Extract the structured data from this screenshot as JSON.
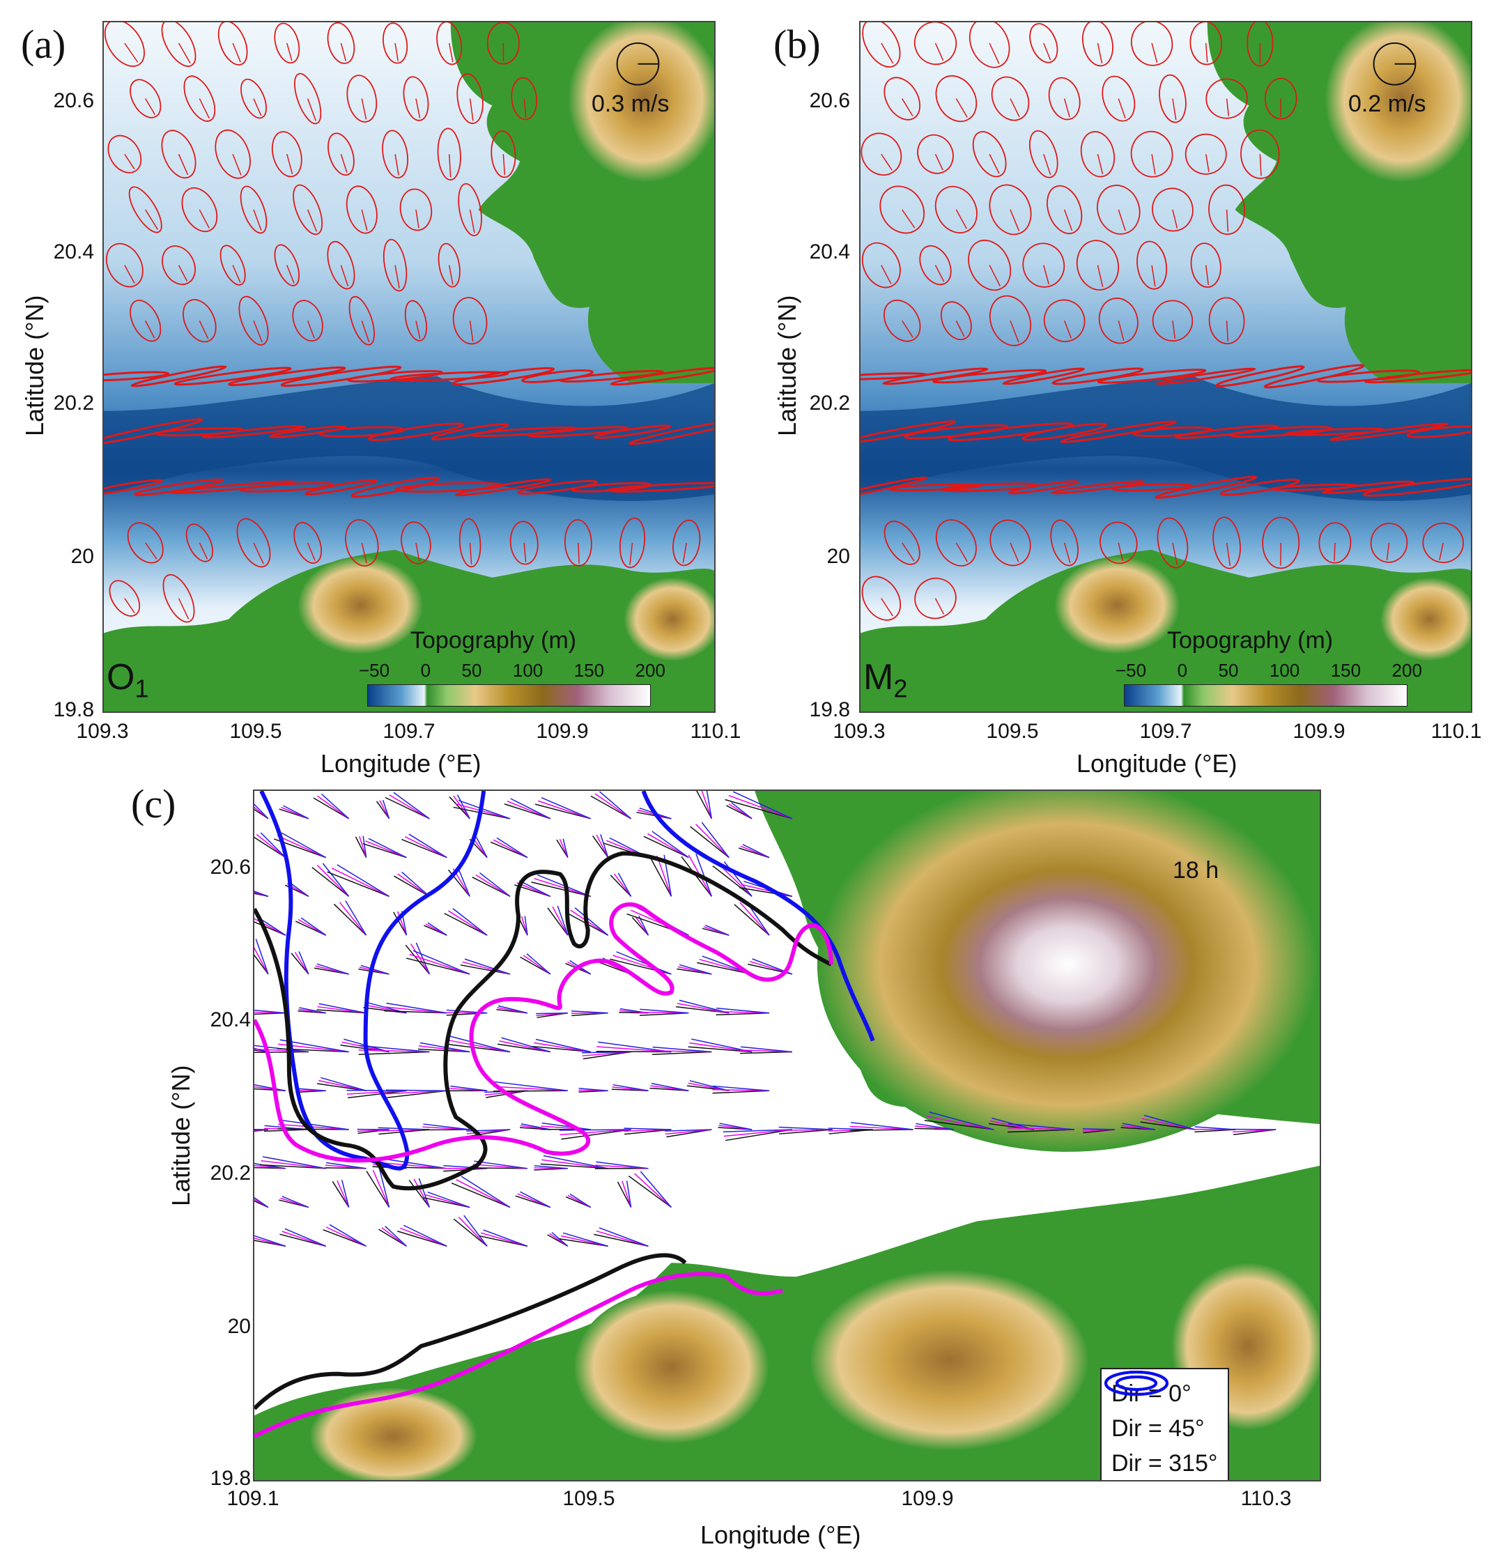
{
  "panels": {
    "a": {
      "label": "(a)",
      "constituent": "O",
      "constituent_sub": "1",
      "scale_label": "0.3 m/s",
      "y_ticks": [
        "20.6",
        "20.4",
        "20.2",
        "20",
        "19.8"
      ],
      "x_ticks": [
        "109.3",
        "109.5",
        "109.7",
        "109.9",
        "110.1"
      ],
      "xlabel": "Longitude (°E)",
      "ylabel": "Latitude (°N)",
      "colorbar_title": "Topography (m)",
      "colorbar_ticks": [
        "−50",
        "0",
        "50",
        "100",
        "150",
        "200"
      ]
    },
    "b": {
      "label": "(b)",
      "constituent": "M",
      "constituent_sub": "2",
      "scale_label": "0.2 m/s",
      "y_ticks": [
        "20.6",
        "20.4",
        "20.2",
        "20",
        "19.8"
      ],
      "x_ticks": [
        "109.3",
        "109.5",
        "109.7",
        "109.9",
        "110.1"
      ],
      "xlabel": "Longitude (°E)",
      "ylabel": "Latitude (°N)",
      "colorbar_title": "Topography (m)",
      "colorbar_ticks": [
        "−50",
        "0",
        "50",
        "100",
        "150",
        "200"
      ]
    },
    "c": {
      "label": "(c)",
      "time_label": "18 h",
      "y_ticks": [
        "20.6",
        "20.4",
        "20.2",
        "20",
        "19.8"
      ],
      "x_ticks": [
        "109.1",
        "109.5",
        "109.9",
        "110.3"
      ],
      "xlabel": "Longitude (°E)",
      "ylabel": "Latitude (°N)",
      "legend": [
        {
          "label": "Dir = 0°",
          "color": "#000000"
        },
        {
          "label": "Dir = 45°",
          "color": "#ee00ee"
        },
        {
          "label": "Dir = 315°",
          "color": "#0010ee"
        }
      ]
    }
  },
  "colors": {
    "ellipse": "#e01818",
    "deep_water": "#0a3f8a",
    "shallow_water": "#e9f3fb",
    "land_low": "#2f8f2a",
    "land_mid": "#c9a24a",
    "land_high": "#d9c2d2",
    "arrow_black": "#111111",
    "arrow_magenta": "#ee00ee",
    "arrow_blue": "#2020dd"
  }
}
